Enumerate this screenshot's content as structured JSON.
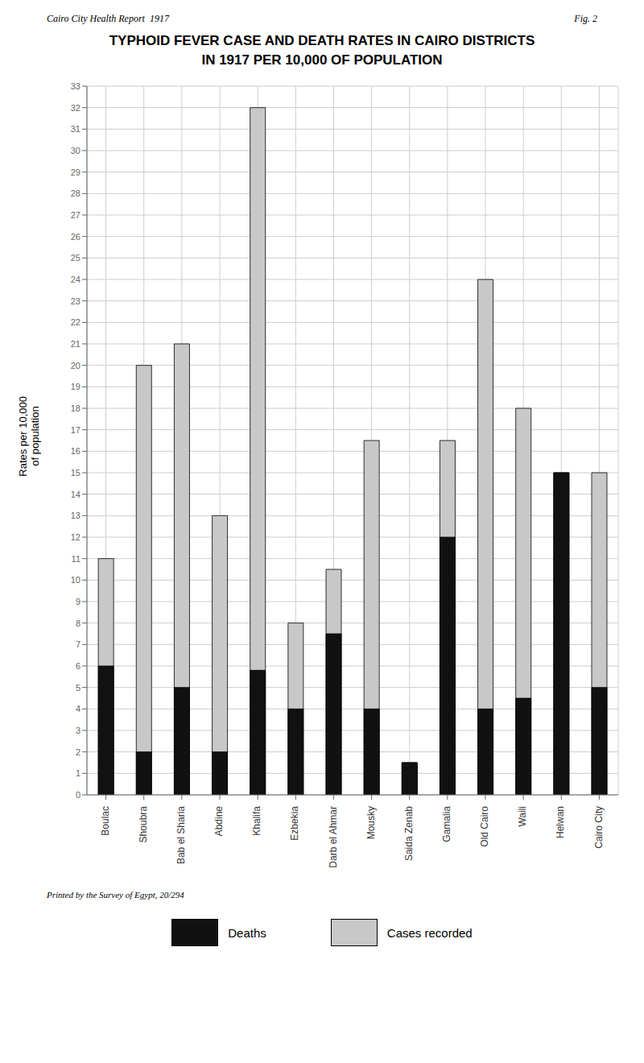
{
  "chart_data": {
    "type": "bar",
    "title": "TYPHOID FEVER CASE AND DEATH RATES IN CAIRO DISTRICTS",
    "subtitle": "IN 1917 PER 10,000 OF POPULATION",
    "annotations": [
      "Cairo City Health Report  1917",
      "Fig. 2",
      "Printed by the Survey of Egypt, 20/294"
    ],
    "y_label": "Rates per 10,000\nof population",
    "categories": [
      "Boulac",
      "Shoubra",
      "Bab el Sharia",
      "Abdine",
      "Khalifa",
      "Ezbekia",
      "Darb el Ahmar",
      "Mousky",
      "Saida Zenab",
      "Gamalia",
      "Old Cairo",
      "Waili",
      "Helwan",
      "Cairo City"
    ],
    "series": [
      {
        "name": "Cases recorded",
        "color": "#c8c8c8",
        "values": [
          11,
          20,
          21,
          13,
          32,
          8,
          10.5,
          16.5,
          1.5,
          16.5,
          24,
          18,
          15,
          15
        ]
      },
      {
        "name": "Deaths",
        "color": "#111111",
        "values": [
          6,
          2,
          5,
          2,
          5.8,
          4,
          7.5,
          4,
          1.5,
          12,
          4,
          4.5,
          15,
          5
        ]
      }
    ],
    "ylim": [
      0,
      33
    ],
    "yticks": [
      0,
      1,
      2,
      3,
      4,
      5,
      6,
      7,
      8,
      9,
      10,
      11,
      12,
      13,
      14,
      15,
      16,
      17,
      18,
      19,
      20,
      21,
      22,
      23,
      24,
      25,
      26,
      27,
      28,
      29,
      30,
      31,
      32,
      33
    ],
    "grid": true,
    "legend": "bottom"
  }
}
